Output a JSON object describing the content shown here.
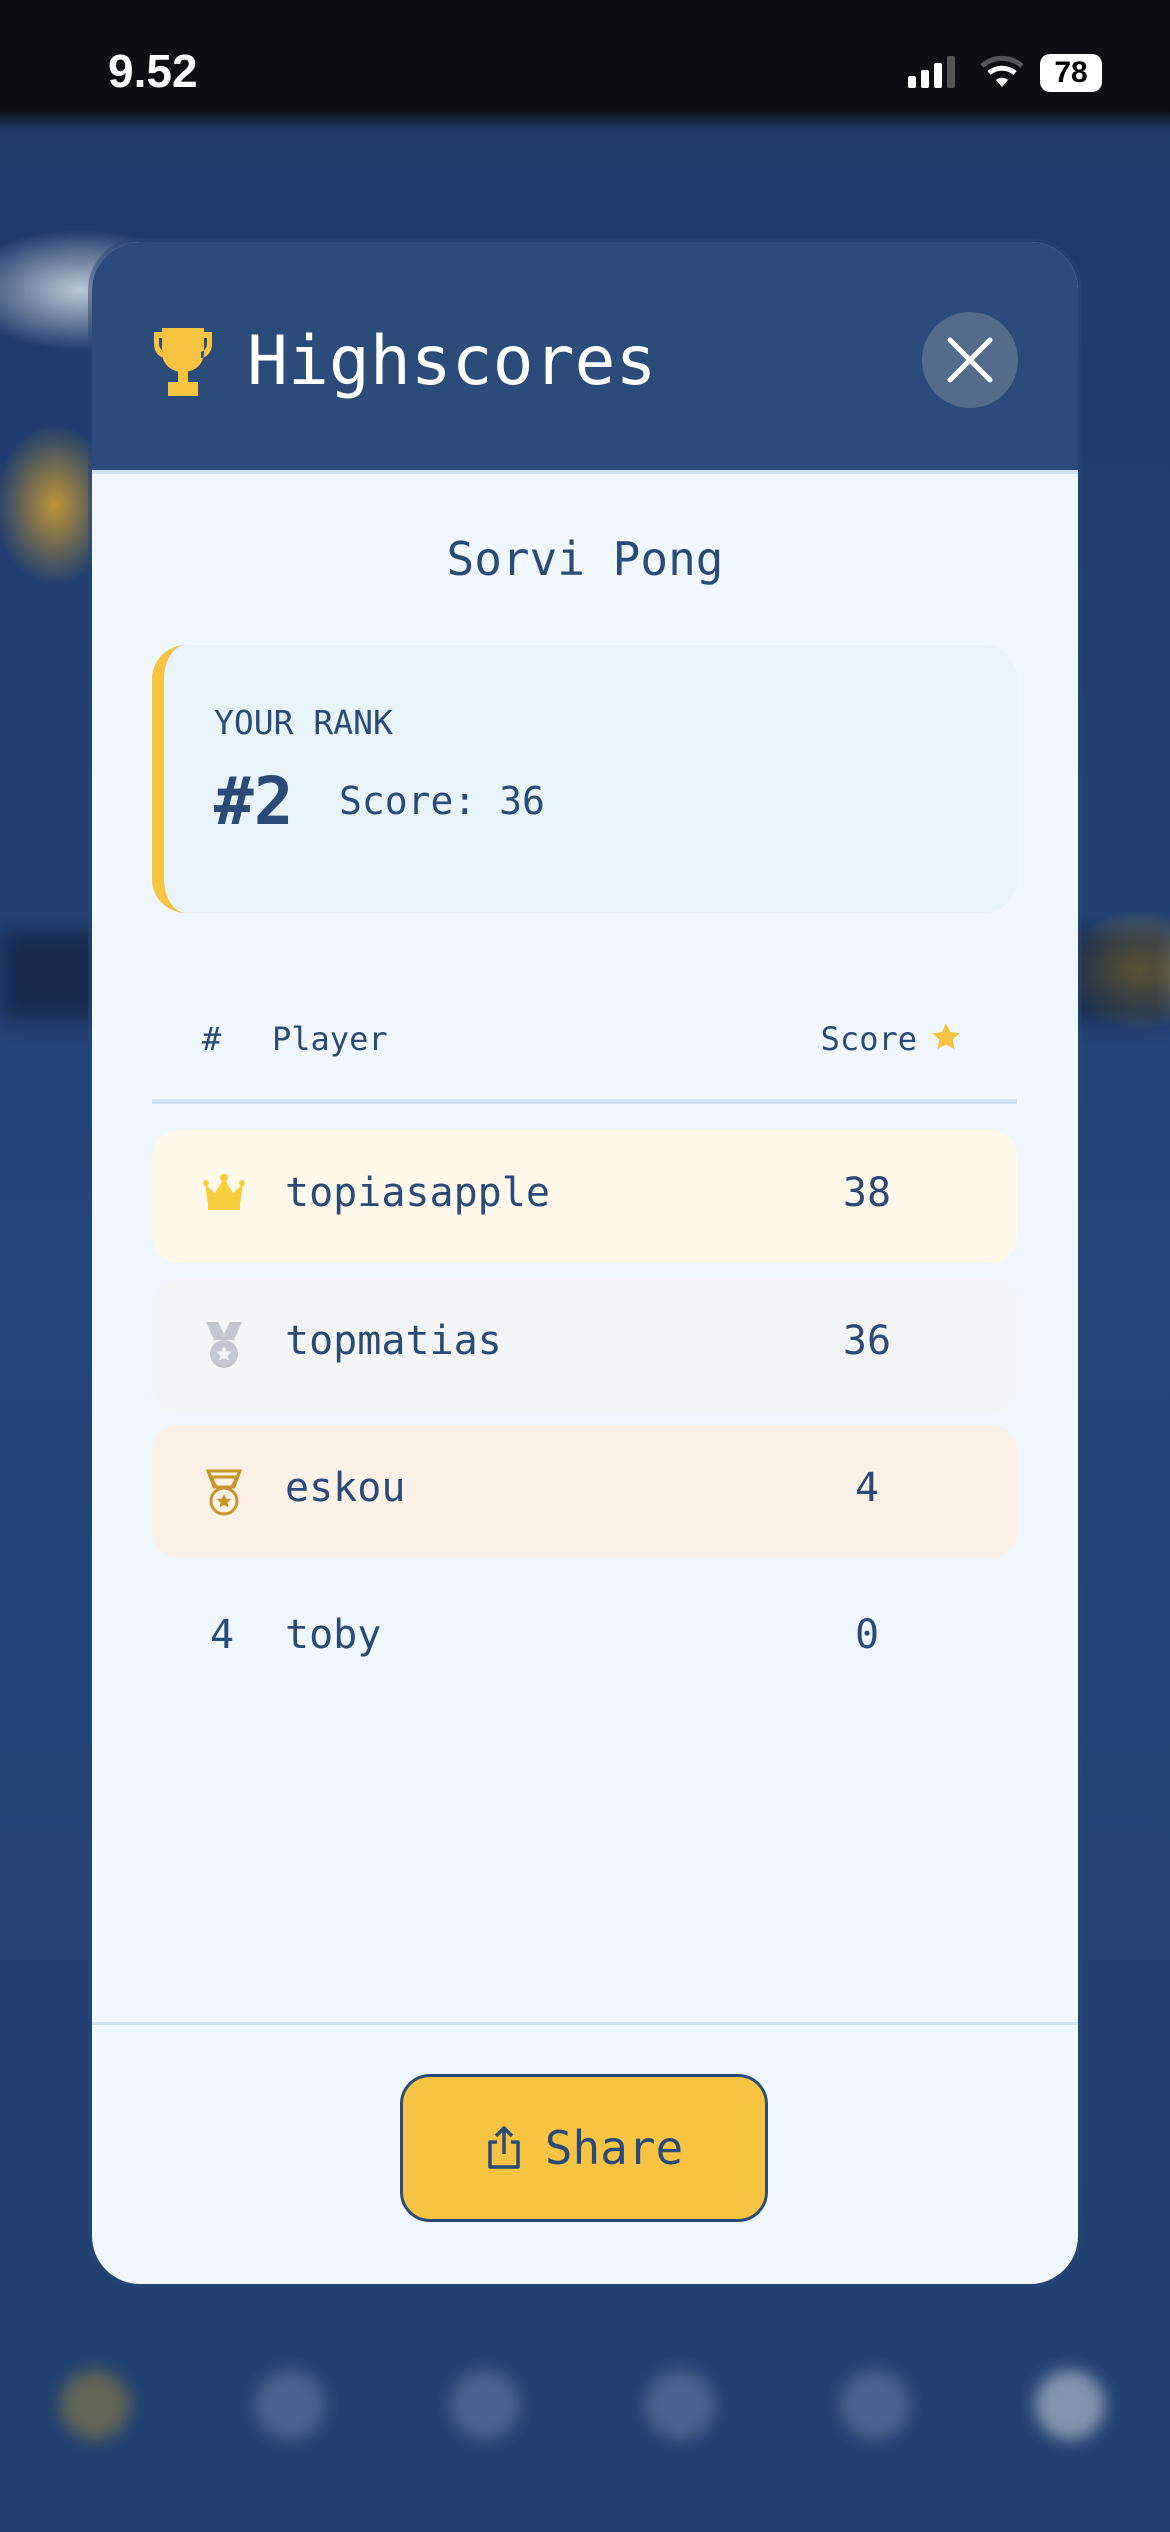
{
  "status_bar": {
    "time": "9.52",
    "battery": "78"
  },
  "modal": {
    "title": "Highscores",
    "game_title": "Sorvi Pong",
    "your_rank": {
      "label": "YOUR RANK",
      "rank": "#2",
      "score_text": "Score: 36"
    },
    "table": {
      "headers": {
        "rank": "#",
        "player": "Player",
        "score": "Score"
      },
      "rows": [
        {
          "rank": "1",
          "icon": "crown-icon",
          "player": "topiasapple",
          "score": "38",
          "bg": "#fef9ea"
        },
        {
          "rank": "2",
          "icon": "silver-medal-icon",
          "player": "topmatias",
          "score": "36",
          "bg": "#f4f5f7"
        },
        {
          "rank": "3",
          "icon": "bronze-medal-icon",
          "player": "eskou",
          "score": "4",
          "bg": "#fbf1e7"
        },
        {
          "rank": "4",
          "icon": "",
          "player": "toby",
          "score": "0",
          "bg": "transparent"
        }
      ]
    },
    "share_label": "Share"
  },
  "colors": {
    "accent": "#f6c343",
    "header": "#2b4c79",
    "text": "#2a4a78",
    "background": "#f0f7fe"
  }
}
